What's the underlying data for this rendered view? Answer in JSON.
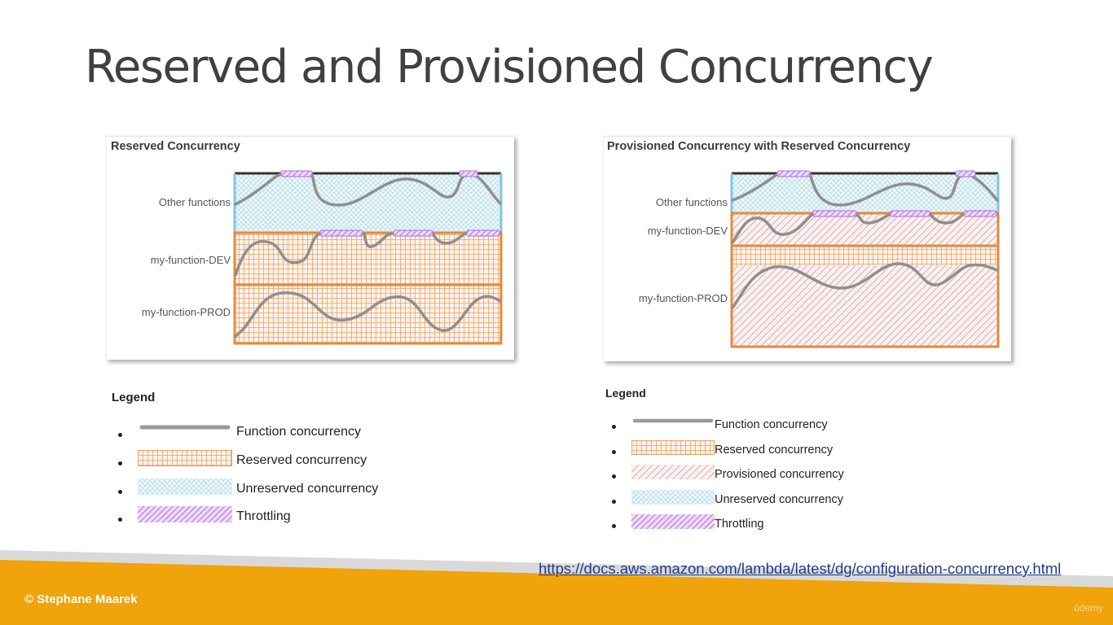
{
  "slide": {
    "title": "Reserved and Provisioned Concurrency",
    "source_link": "https://docs.aws.amazon.com/lambda/latest/dg/configuration-concurrency.html",
    "copyright": "© Stephane Maarek",
    "watermark": "ūdemy"
  },
  "colors": {
    "function_concurrency": "#8f8f8f",
    "reserved": "#e58a3b",
    "unreserved": "#7ec8de",
    "provisioned": "#c99393",
    "throttling": "#b06ee0",
    "footer_orange": "#f0a30a",
    "footer_gray": "#d9d9d9"
  },
  "diagrams": {
    "left": {
      "title": "Reserved Concurrency",
      "rows": [
        "Other functions",
        "my-function-DEV",
        "my-function-PROD"
      ]
    },
    "right": {
      "title": "Provisioned Concurrency with Reserved Concurrency",
      "rows": [
        "Other functions",
        "my-function-DEV",
        "my-function-PROD"
      ]
    }
  },
  "legends": {
    "left": {
      "title": "Legend",
      "items": [
        {
          "label": "Function concurrency",
          "icon": "function-concurrency-line"
        },
        {
          "label": "Reserved concurrency",
          "icon": "reserved-grid-pattern"
        },
        {
          "label": "Unreserved concurrency",
          "icon": "unreserved-crosshatch-pattern"
        },
        {
          "label": "Throttling",
          "icon": "throttling-hatch-pattern"
        }
      ]
    },
    "right": {
      "title": "Legend",
      "items": [
        {
          "label": "Function concurrency",
          "icon": "function-concurrency-line"
        },
        {
          "label": "Reserved concurrency",
          "icon": "reserved-grid-pattern"
        },
        {
          "label": "Provisioned concurrency",
          "icon": "provisioned-hatch-pattern"
        },
        {
          "label": "Unreserved concurrency",
          "icon": "unreserved-crosshatch-pattern"
        },
        {
          "label": "Throttling",
          "icon": "throttling-hatch-pattern"
        }
      ]
    }
  }
}
